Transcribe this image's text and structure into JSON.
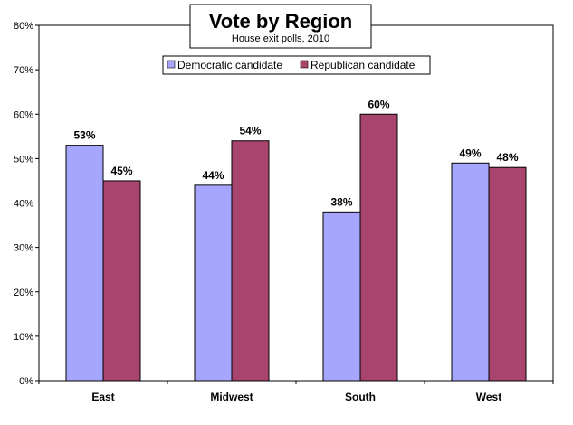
{
  "chart_data": {
    "type": "bar",
    "title": "Vote by Region",
    "subtitle": "House exit polls, 2010",
    "categories": [
      "East",
      "Midwest",
      "South",
      "West"
    ],
    "series": [
      {
        "name": "Democratic candidate",
        "color": "#a6a6ff",
        "values": [
          53,
          44,
          38,
          49
        ]
      },
      {
        "name": "Republican candidate",
        "color": "#a8446e",
        "values": [
          45,
          54,
          60,
          48
        ]
      }
    ],
    "data_labels": [
      [
        "53%",
        "44%",
        "38%",
        "49%"
      ],
      [
        "45%",
        "54%",
        "60%",
        "48%"
      ]
    ],
    "yticks": [
      "0%",
      "10%",
      "20%",
      "30%",
      "40%",
      "50%",
      "60%",
      "70%",
      "80%"
    ],
    "ylim": [
      0,
      80
    ],
    "grid": false,
    "legend_position": "top-center"
  }
}
